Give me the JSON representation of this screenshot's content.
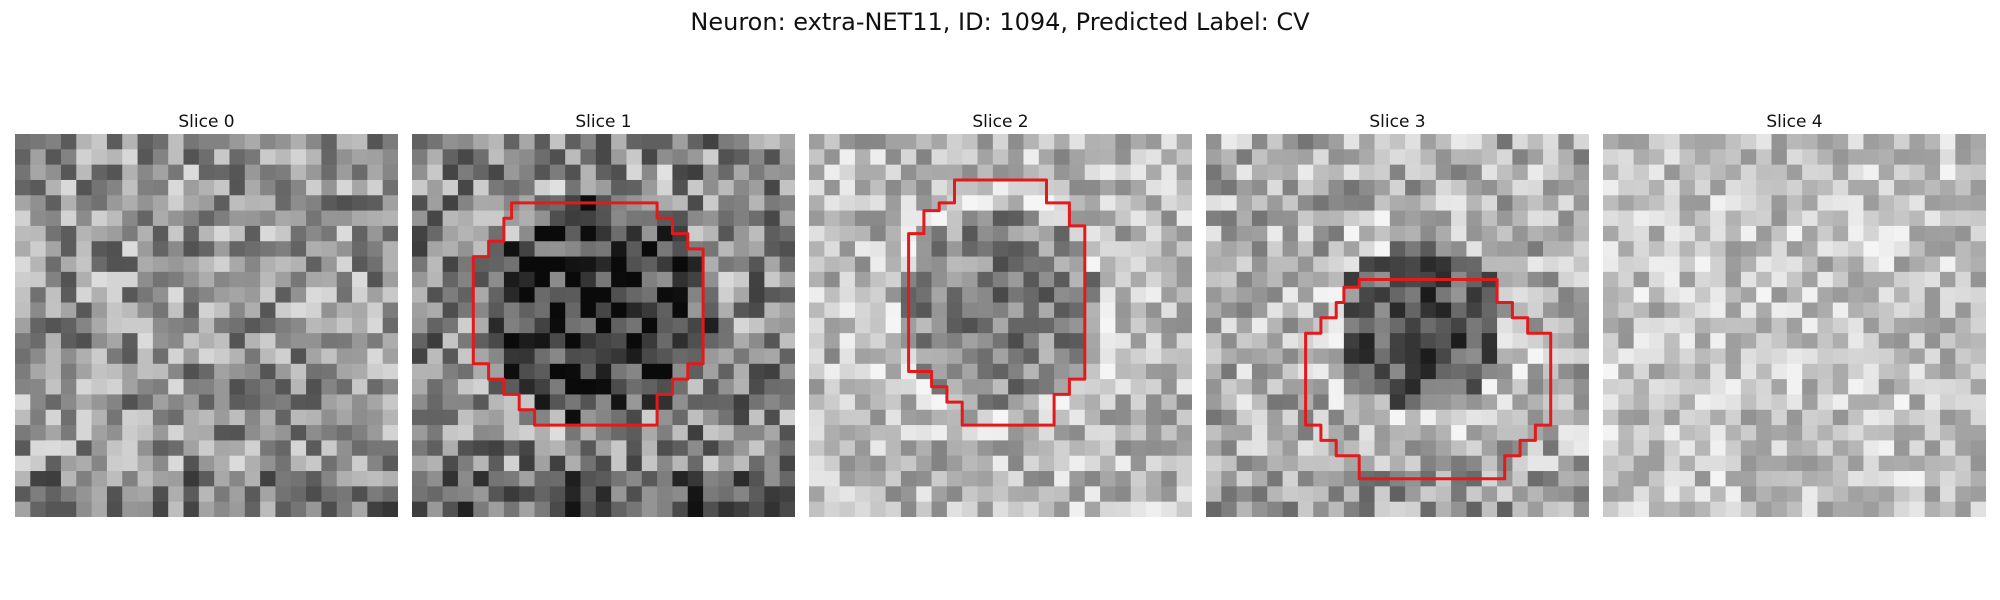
{
  "figure": {
    "title": "Neuron: extra-NET11, ID: 1094, Predicted Label: CV"
  },
  "panels": [
    {
      "title": "Slice 0",
      "has_contour": false
    },
    {
      "title": "Slice 1",
      "has_contour": true
    },
    {
      "title": "Slice 2",
      "has_contour": true
    },
    {
      "title": "Slice 3",
      "has_contour": true
    },
    {
      "title": "Slice 4",
      "has_contour": false
    }
  ],
  "colors": {
    "contour": "#e31a1c"
  }
}
